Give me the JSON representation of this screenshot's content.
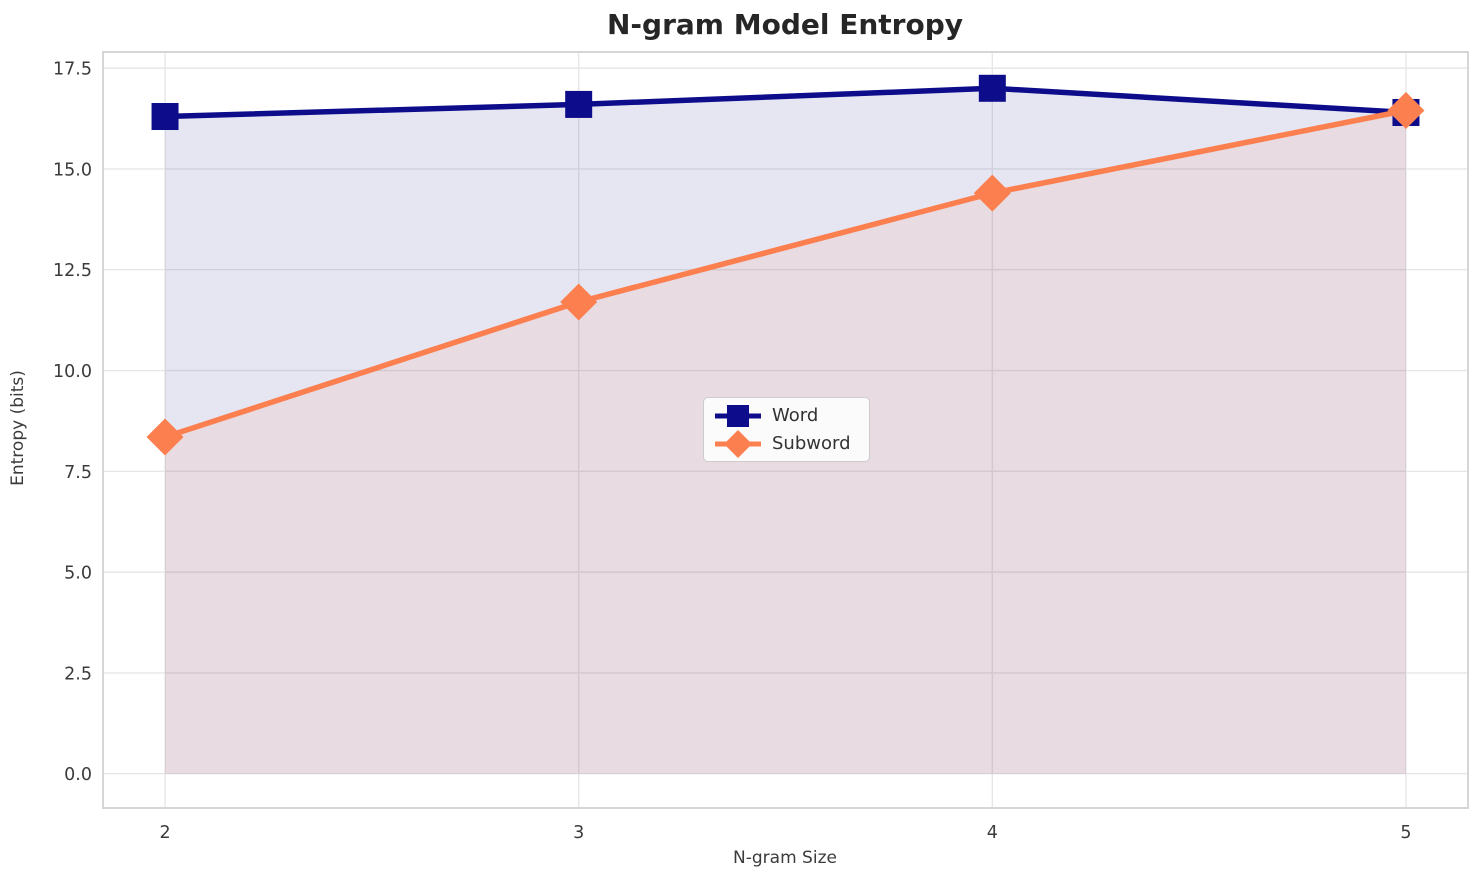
{
  "title": "N-gram Model Entropy",
  "chart_data": {
    "type": "line",
    "title": "N-gram Model Entropy",
    "xlabel": "N-gram Size",
    "ylabel": "Entropy (bits)",
    "x": [
      2,
      3,
      4,
      5
    ],
    "series": [
      {
        "name": "Word",
        "values": [
          16.3,
          16.6,
          17.0,
          16.4
        ],
        "color": "#0d0d8c",
        "marker": "square"
      },
      {
        "name": "Subword",
        "values": [
          8.35,
          11.7,
          14.4,
          16.45
        ],
        "color": "#fc7f50",
        "marker": "diamond"
      }
    ],
    "area_fill": true,
    "fill_opacity": 0.1,
    "fill_baseline": 0,
    "xlim": [
      1.85,
      5.15
    ],
    "ylim": [
      -0.85,
      17.9
    ],
    "xticks": [
      2,
      3,
      4,
      5
    ],
    "xtick_labels": [
      "2",
      "3",
      "4",
      "5"
    ],
    "yticks": [
      0.0,
      2.5,
      5.0,
      7.5,
      10.0,
      12.5,
      15.0,
      17.5
    ],
    "ytick_labels": [
      "0.0",
      "2.5",
      "5.0",
      "7.5",
      "10.0",
      "12.5",
      "15.0",
      "17.5"
    ],
    "grid": true,
    "grid_color": "#e7e7e7",
    "spine_color": "#d2d2d2",
    "tick_label_color": "#3b3b3b",
    "legend": {
      "position": "center",
      "entries": [
        "Word",
        "Subword"
      ]
    }
  }
}
